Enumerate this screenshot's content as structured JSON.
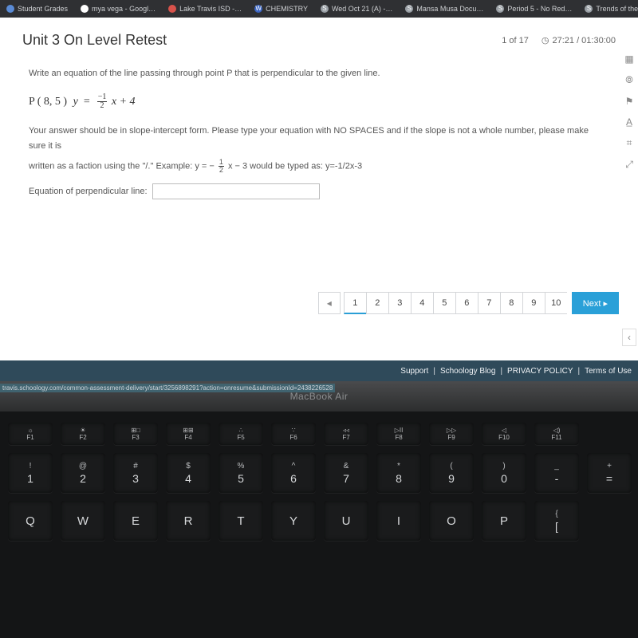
{
  "tabs": [
    {
      "label": "Student Grades",
      "favcolor": "#5a8bd6",
      "favchar": ""
    },
    {
      "label": "mya vega - Googl…",
      "favcolor": "#ffffff",
      "favchar": "≡"
    },
    {
      "label": "Lake Travis ISD -…",
      "favcolor": "#d8524b",
      "favchar": ""
    },
    {
      "label": "CHEMISTRY",
      "favcolor": "#3c66c4",
      "favchar": "W"
    },
    {
      "label": "Wed Oct 21 (A) -…",
      "favcolor": "#9aa0a6",
      "favchar": "S"
    },
    {
      "label": "Mansa Musa Docu…",
      "favcolor": "#9aa0a6",
      "favchar": "S"
    },
    {
      "label": "Period 5 - No Red…",
      "favcolor": "#9aa0a6",
      "favchar": "S"
    },
    {
      "label": "Trends of the Peri…",
      "favcolor": "#9aa0a6",
      "favchar": "S"
    }
  ],
  "assessment": {
    "title": "Unit 3 On Level Retest",
    "progress": "1 of 17",
    "timer": "27:21 / 01:30:00",
    "prompt": "Write an equation of the line passing through point P that is perpendicular to the given line.",
    "point_label": "P ( 8, 5 )",
    "eq_lhs": "y",
    "eq_eq": "=",
    "frac_top": "−1",
    "frac_bot": "2",
    "eq_rhs": "x + 4",
    "instruction1": "Your answer should be in slope-intercept form. Please type your equation with NO SPACES and if the slope is not a whole number, please make sure it is",
    "instruction2_pre": "written as a faction using the \"/.\" Example: y = −",
    "instruction2_frac_top": "1",
    "instruction2_frac_bot": "2",
    "instruction2_post": "x − 3 would be typed as: y=-1/2x-3",
    "input_label": "Equation of perpendicular line:",
    "input_value": ""
  },
  "pager": {
    "pages": [
      "1",
      "2",
      "3",
      "4",
      "5",
      "6",
      "7",
      "8",
      "9",
      "10"
    ],
    "current": "1",
    "prev_glyph": "◂",
    "next_label": "Next ▸"
  },
  "side_tools": [
    "▦",
    "⦾",
    "⚑",
    "A̲",
    "⌗",
    "⤢"
  ],
  "footer": {
    "links": [
      "Support",
      "Schoology Blog",
      "PRIVACY POLICY",
      "Terms of Use"
    ],
    "sep": "|",
    "url": "travis.schoology.com/common-assessment-delivery/start/3256898291?action=onresume&submissionId=2438226528"
  },
  "laptop_label": "MacBook Air",
  "keyboard": {
    "fn_row": [
      {
        "sym": "☼",
        "lbl": "F1"
      },
      {
        "sym": "☀",
        "lbl": "F2"
      },
      {
        "sym": "⊞□",
        "lbl": "F3"
      },
      {
        "sym": "⊞⊞",
        "lbl": "F4"
      },
      {
        "sym": "∴",
        "lbl": "F5"
      },
      {
        "sym": "∵",
        "lbl": "F6"
      },
      {
        "sym": "◃◃",
        "lbl": "F7"
      },
      {
        "sym": "▷II",
        "lbl": "F8"
      },
      {
        "sym": "▷▷",
        "lbl": "F9"
      },
      {
        "sym": "◁",
        "lbl": "F10"
      },
      {
        "sym": "◁)",
        "lbl": "F11"
      }
    ],
    "num_row": [
      {
        "sym": "!",
        "main": "1"
      },
      {
        "sym": "@",
        "main": "2"
      },
      {
        "sym": "#",
        "main": "3"
      },
      {
        "sym": "$",
        "main": "4"
      },
      {
        "sym": "%",
        "main": "5"
      },
      {
        "sym": "^",
        "main": "6"
      },
      {
        "sym": "&",
        "main": "7"
      },
      {
        "sym": "*",
        "main": "8"
      },
      {
        "sym": "(",
        "main": "9"
      },
      {
        "sym": ")",
        "main": "0"
      },
      {
        "sym": "_",
        "main": "-"
      },
      {
        "sym": "+",
        "main": "="
      }
    ],
    "alpha_row": [
      "Q",
      "W",
      "E",
      "R",
      "T",
      "Y",
      "U",
      "I",
      "O",
      "P"
    ],
    "alpha_extra": {
      "sym": "{",
      "main": "["
    }
  }
}
